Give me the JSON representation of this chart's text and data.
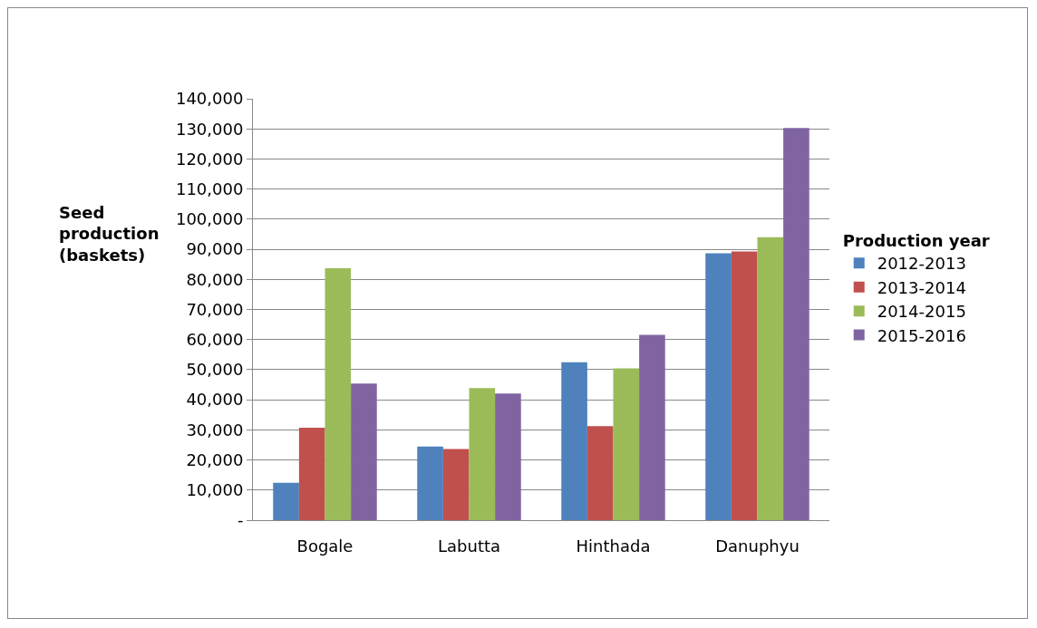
{
  "chart_data": {
    "type": "bar",
    "ylabel": "Seed production (baskets)",
    "legend_title": "Production year",
    "categories": [
      "Bogale",
      "Labutta",
      "Hinthada",
      "Danuphyu"
    ],
    "series": [
      {
        "name": "2012-2013",
        "color": "#4f81bd",
        "values": [
          12400,
          24500,
          52500,
          88700
        ]
      },
      {
        "name": "2013-2014",
        "color": "#c0504d",
        "values": [
          30700,
          23600,
          31200,
          89300
        ]
      },
      {
        "name": "2014-2015",
        "color": "#9bbb59",
        "values": [
          83700,
          43900,
          50400,
          94000
        ]
      },
      {
        "name": "2015-2016",
        "color": "#8064a2",
        "values": [
          45400,
          42100,
          61600,
          130300
        ]
      }
    ],
    "ylim": [
      0,
      140000
    ],
    "yticks": [
      {
        "value": 0,
        "label": "-"
      },
      {
        "value": 10000,
        "label": "10,000"
      },
      {
        "value": 20000,
        "label": "20,000"
      },
      {
        "value": 30000,
        "label": "30,000"
      },
      {
        "value": 40000,
        "label": "40,000"
      },
      {
        "value": 50000,
        "label": "50,000"
      },
      {
        "value": 60000,
        "label": "60,000"
      },
      {
        "value": 70000,
        "label": "70,000"
      },
      {
        "value": 80000,
        "label": "80,000"
      },
      {
        "value": 90000,
        "label": "90,000"
      },
      {
        "value": 100000,
        "label": "100,000"
      },
      {
        "value": 110000,
        "label": "110,000"
      },
      {
        "value": 120000,
        "label": "120,000"
      },
      {
        "value": 130000,
        "label": "130,000"
      },
      {
        "value": 140000,
        "label": "140,000"
      }
    ],
    "grid": "y",
    "legend": "right"
  }
}
